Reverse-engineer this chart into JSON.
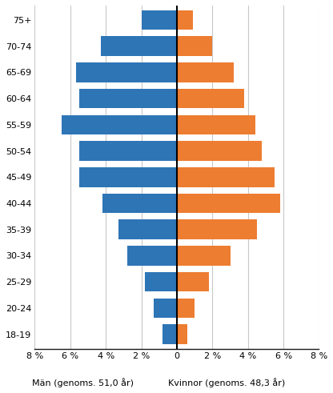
{
  "age_groups": [
    "18-19",
    "20-24",
    "25-29",
    "30-34",
    "35-39",
    "40-44",
    "45-49",
    "50-54",
    "55-59",
    "60-64",
    "65-69",
    "70-74",
    "75+"
  ],
  "men_values": [
    0.8,
    1.3,
    1.8,
    2.8,
    3.3,
    4.2,
    5.5,
    5.5,
    6.5,
    5.5,
    5.7,
    4.3,
    2.0
  ],
  "women_values": [
    0.6,
    1.0,
    1.8,
    3.0,
    4.5,
    5.8,
    5.5,
    4.8,
    4.4,
    3.8,
    3.2,
    2.0,
    0.9
  ],
  "men_color": "#2E75B6",
  "women_color": "#ED7D31",
  "background_color": "#FFFFFF",
  "grid_color": "#C8C8C8",
  "xlim": [
    -8,
    8
  ],
  "xticks": [
    -8,
    -6,
    -4,
    -2,
    0,
    2,
    4,
    6,
    8
  ],
  "xlabel_men": "Män (genoms. 51,0 år)",
  "xlabel_women": "Kvinnor (genoms. 48,3 år)",
  "bar_height": 0.75,
  "axis_line_color": "#1a1a1a",
  "center_line_color": "#000000",
  "tick_fontsize": 8,
  "label_fontsize": 8
}
